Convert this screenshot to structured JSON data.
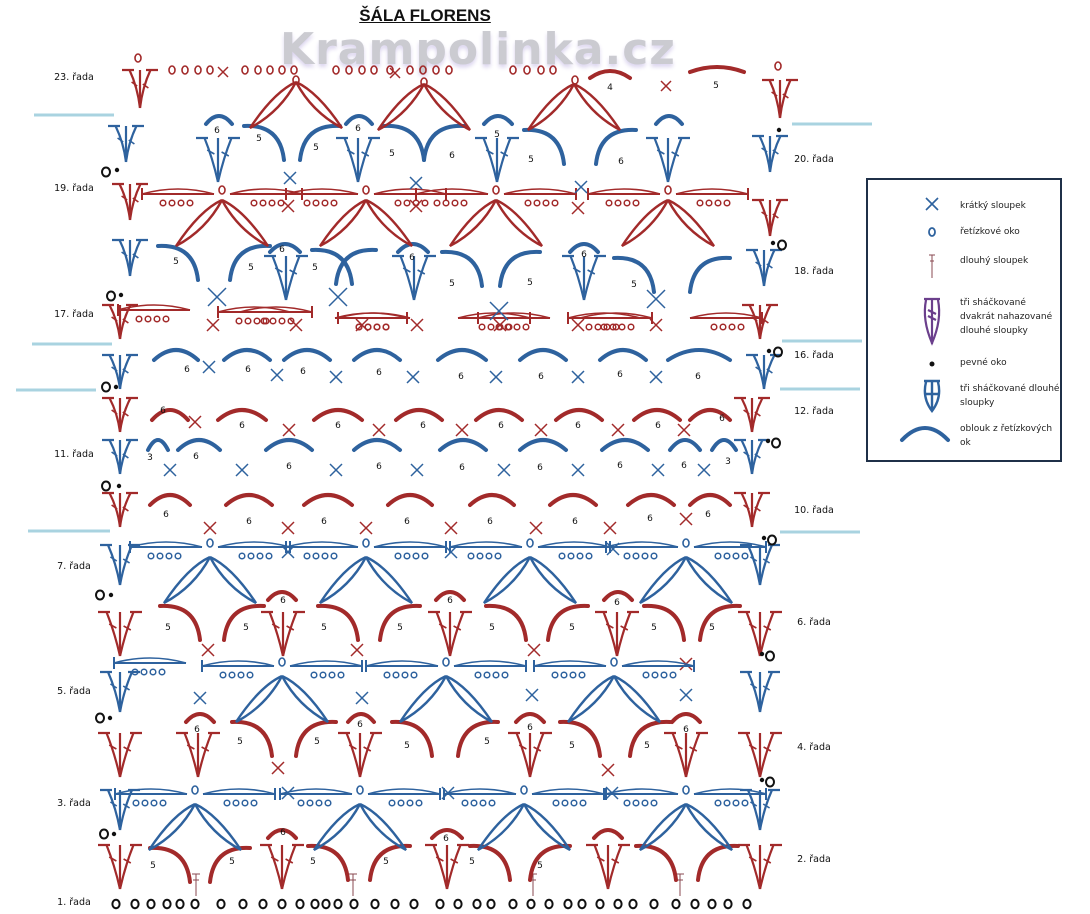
{
  "title": "ŠÁLA FLORENS",
  "watermark": "Krampolinka.cz",
  "colors": {
    "red": "#a22a2a",
    "blue": "#2e629e",
    "purple": "#6b3f8c",
    "divider": "#a9d3e0",
    "legend_border": "#1f3048",
    "black": "#111111"
  },
  "row_labels": [
    {
      "label": "23. řada",
      "side": "left"
    },
    {
      "label": "20. řada",
      "side": "right"
    },
    {
      "label": "19. řada",
      "side": "left"
    },
    {
      "label": "18. řada",
      "side": "right"
    },
    {
      "label": "17. řada",
      "side": "left"
    },
    {
      "label": "16. řada",
      "side": "right"
    },
    {
      "label": "12. řada",
      "side": "right"
    },
    {
      "label": "11. řada",
      "side": "left"
    },
    {
      "label": "10. řada",
      "side": "right"
    },
    {
      "label": "7. řada",
      "side": "left"
    },
    {
      "label": "6. řada",
      "side": "right"
    },
    {
      "label": "5. řada",
      "side": "left"
    },
    {
      "label": "4. řada",
      "side": "right"
    },
    {
      "label": "3. řada",
      "side": "left"
    },
    {
      "label": "2. řada",
      "side": "right"
    },
    {
      "label": "1. řada",
      "side": "left"
    }
  ],
  "chain_counts": {
    "row23": [
      "4",
      "5"
    ],
    "row20": [
      "6",
      "5",
      "5",
      "6",
      "5",
      "6",
      "5",
      "5",
      "6"
    ],
    "row18": [
      "5",
      "5",
      "6",
      "5",
      "6",
      "5",
      "5",
      "6",
      "5"
    ],
    "row16": [
      "6",
      "6",
      "6",
      "6",
      "6",
      "6",
      "6",
      "6"
    ],
    "row12": [
      "6",
      "6",
      "6",
      "6",
      "6",
      "6",
      "6",
      "6"
    ],
    "row11": [
      "3",
      "6",
      "6",
      "6",
      "6",
      "6",
      "6",
      "6",
      "3"
    ],
    "row10": [
      "6",
      "6",
      "6",
      "6",
      "6",
      "6",
      "6",
      "6"
    ],
    "row6": [
      "5",
      "5",
      "6",
      "5",
      "5",
      "6",
      "5",
      "5",
      "6",
      "5",
      "5"
    ],
    "row4": [
      "6",
      "5",
      "5",
      "6",
      "5",
      "5",
      "6",
      "5",
      "5",
      "6"
    ],
    "row2": [
      "5",
      "5",
      "6",
      "5",
      "5",
      "6",
      "5",
      "5"
    ]
  },
  "legend": {
    "items": [
      {
        "symbol": "cross-icon",
        "text": "krátký sloupek"
      },
      {
        "symbol": "oval-icon",
        "text": "řetízkové oko"
      },
      {
        "symbol": "tall-stitch-icon",
        "text": "dlouhý sloupek"
      },
      {
        "symbol": "purple-cluster-icon",
        "text": "tři sháčkované dvakrát nahazované dlouhé sloupky"
      },
      {
        "symbol": "dot-icon",
        "text": "pevné oko"
      },
      {
        "symbol": "blue-cluster-icon",
        "text": "tři sháčkované dlouhé sloupky"
      },
      {
        "symbol": "arc-icon",
        "text": "oblouk z řetízkových ok"
      }
    ]
  }
}
